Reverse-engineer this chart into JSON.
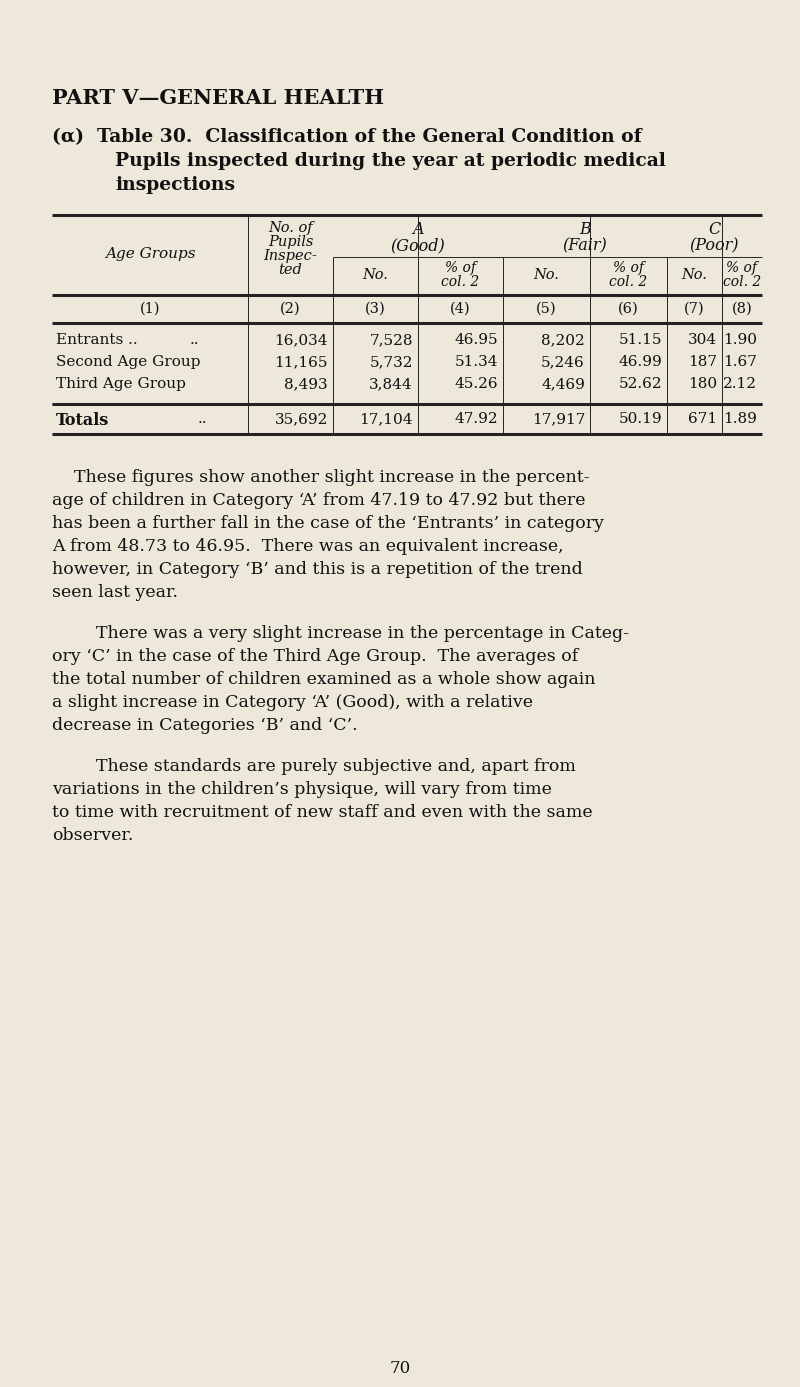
{
  "bg_color": "#ede8da",
  "text_color": "#111111",
  "page_number": "70",
  "part_heading": "PART V—GENERAL HEALTH",
  "table_title_line1": "(α)  Table 30.  Classification of the General Condition of",
  "table_title_line2": "Pupils inspected during the year at periodic medical",
  "table_title_line3": "inspections",
  "col_nums": [
    "(1)",
    "(2)",
    "(3)",
    "(4)",
    "(5)",
    "(6)",
    "(7)",
    "(8)"
  ],
  "rows": [
    {
      "label1": "Entrants ..",
      "label2": "..",
      "no_pupils": "16,034",
      "a_no": "7,528",
      "a_pct": "46.95",
      "b_no": "8,202",
      "b_pct": "51.15",
      "c_no": "304",
      "c_pct": "1.90"
    },
    {
      "label1": "Second Age Group",
      "label2": "",
      "no_pupils": "11,165",
      "a_no": "5,732",
      "a_pct": "51.34",
      "b_no": "5,246",
      "b_pct": "46.99",
      "c_no": "187",
      "c_pct": "1.67"
    },
    {
      "label1": "Third Age Group",
      "label2": "",
      "no_pupils": "8,493",
      "a_no": "3,844",
      "a_pct": "45.26",
      "b_no": "4,469",
      "b_pct": "52.62",
      "c_no": "180",
      "c_pct": "2.12"
    }
  ],
  "totals_row": {
    "no_pupils": "35,692",
    "a_no": "17,104",
    "a_pct": "47.92",
    "b_no": "17,917",
    "b_pct": "50.19",
    "c_no": "671",
    "c_pct": "1.89"
  },
  "para1_lines": [
    "    These figures show another slight increase in the percent-",
    "age of children in Category ‘A’ from 47.19 to 47.92 but there",
    "has been a further fall in the case of the ‘Entrants’ in category",
    "A from 48.73 to 46.95.  There was an equivalent increase,",
    "however, in Category ‘B’ and this is a repetition of the trend",
    "seen last year."
  ],
  "para2_lines": [
    "        There was a very slight increase in the percentage in Categ-",
    "ory ‘C’ in the case of the Third Age Group.  The averages of",
    "the total number of children examined as a whole show again",
    "a slight increase in Category ‘A’ (Good), with a relative",
    "decrease in Categories ‘B’ and ‘C’."
  ],
  "para3_lines": [
    "        These standards are purely subjective and, apart from",
    "variations in the children’s physique, will vary from time",
    "to time with recruitment of new staff and even with the same",
    "observer."
  ]
}
